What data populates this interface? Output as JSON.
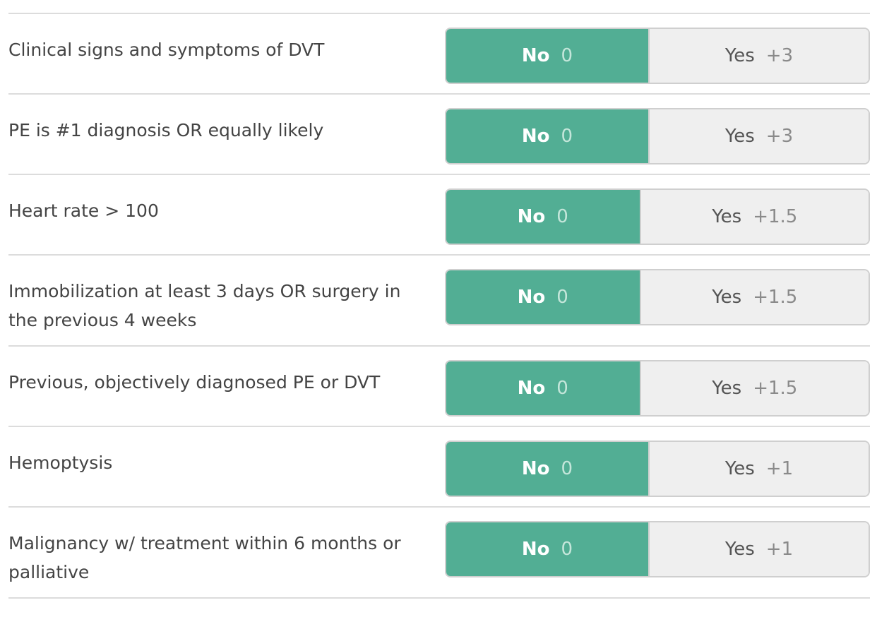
{
  "criteria": [
    {
      "label": "Clinical signs and symptoms of DVT",
      "options": [
        {
          "label": "No",
          "points": "0"
        },
        {
          "label": "Yes",
          "points": "+3"
        }
      ]
    },
    {
      "label": "PE is #1 diagnosis OR equally likely",
      "options": [
        {
          "label": "No",
          "points": "0"
        },
        {
          "label": "Yes",
          "points": "+3"
        }
      ]
    },
    {
      "label": "Heart rate > 100",
      "options": [
        {
          "label": "No",
          "points": "0"
        },
        {
          "label": "Yes",
          "points": "+1.5"
        }
      ]
    },
    {
      "label": "Immobilization at least 3 days OR surgery in the previous 4 weeks",
      "options": [
        {
          "label": "No",
          "points": "0"
        },
        {
          "label": "Yes",
          "points": "+1.5"
        }
      ]
    },
    {
      "label": "Previous, objectively diagnosed PE or DVT",
      "options": [
        {
          "label": "No",
          "points": "0"
        },
        {
          "label": "Yes",
          "points": "+1.5"
        }
      ]
    },
    {
      "label": "Hemoptysis",
      "options": [
        {
          "label": "No",
          "points": "0"
        },
        {
          "label": "Yes",
          "points": "+1"
        }
      ]
    },
    {
      "label": "Malignancy w/ treatment within 6 months or palliative",
      "options": [
        {
          "label": "No",
          "points": "0"
        },
        {
          "label": "Yes",
          "points": "+1"
        }
      ]
    }
  ]
}
